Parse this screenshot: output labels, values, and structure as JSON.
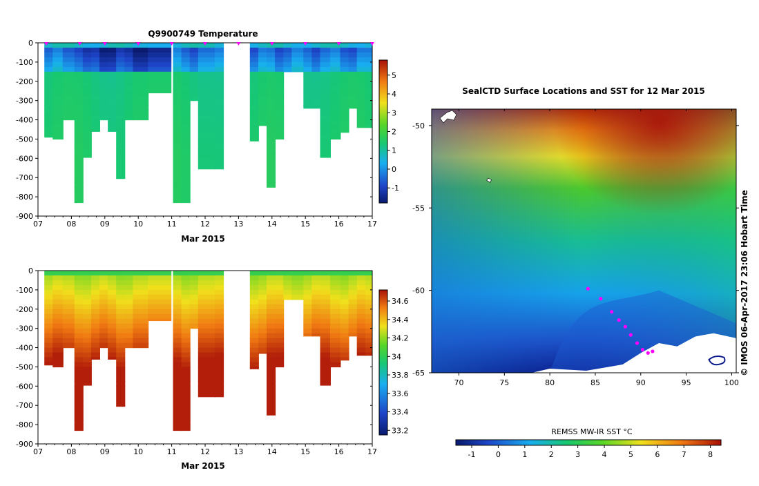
{
  "chart_data": [
    {
      "type": "heatmap",
      "title": "Q9900749  Temperature",
      "xlabel": "Mar 2015",
      "xticks": [
        "07",
        "08",
        "09",
        "10",
        "11",
        "12",
        "13",
        "14",
        "15",
        "16",
        "17"
      ],
      "xlim": [
        7,
        17
      ],
      "ylim": [
        0,
        -900
      ],
      "yticks": [
        "0",
        "-100",
        "-200",
        "-300",
        "-400",
        "-500",
        "-600",
        "-700",
        "-800",
        "-900"
      ],
      "colorbar": {
        "ticks": [
          "-1",
          "0",
          "1",
          "2",
          "3",
          "4",
          "5"
        ],
        "range": [
          -1.8,
          5.8
        ]
      },
      "profile_days": [
        7.2,
        7.45,
        7.75,
        8.1,
        8.35,
        8.6,
        8.85,
        9.1,
        9.35,
        9.6,
        9.85,
        10.3,
        11.05,
        11.3,
        11.55,
        11.8,
        12.3,
        12.55,
        13.35,
        13.6,
        13.85,
        14.1,
        14.35,
        14.6,
        14.95,
        15.2,
        15.45,
        15.75,
        16.05,
        16.3,
        16.55,
        16.8
      ],
      "profile_max_depth": [
        490,
        500,
        400,
        830,
        595,
        460,
        400,
        460,
        705,
        400,
        400,
        260,
        830,
        830,
        300,
        655,
        655,
        0,
        510,
        430,
        750,
        500,
        150,
        150,
        340,
        340,
        595,
        500,
        465,
        340,
        440,
        440
      ],
      "surface_markers": [
        7.25,
        8.25,
        9.0,
        10.0,
        11.0,
        12.0,
        13.0,
        14.0,
        15.0,
        16.0,
        17.0
      ]
    },
    {
      "type": "heatmap",
      "title": "",
      "xlabel": "Mar 2015",
      "xticks": [
        "07",
        "08",
        "09",
        "10",
        "11",
        "12",
        "13",
        "14",
        "15",
        "16",
        "17"
      ],
      "xlim": [
        7,
        17
      ],
      "ylim": [
        0,
        -900
      ],
      "yticks": [
        "0",
        "-100",
        "-200",
        "-300",
        "-400",
        "-500",
        "-600",
        "-700",
        "-800",
        "-900"
      ],
      "colorbar": {
        "ticks": [
          "33.2",
          "33.4",
          "33.6",
          "33.8",
          "34",
          "34.2",
          "34.4",
          "34.6"
        ],
        "range": [
          33.15,
          34.72
        ]
      },
      "profile_days": [
        7.2,
        7.45,
        7.75,
        8.1,
        8.35,
        8.6,
        8.85,
        9.1,
        9.35,
        9.6,
        9.85,
        10.3,
        11.05,
        11.3,
        11.55,
        11.8,
        12.3,
        12.55,
        13.35,
        13.6,
        13.85,
        14.1,
        14.35,
        14.6,
        14.95,
        15.2,
        15.45,
        15.75,
        16.05,
        16.3,
        16.55,
        16.8
      ],
      "profile_max_depth": [
        490,
        500,
        400,
        830,
        595,
        460,
        400,
        460,
        705,
        400,
        400,
        260,
        830,
        830,
        300,
        655,
        655,
        0,
        510,
        430,
        750,
        500,
        150,
        150,
        340,
        340,
        595,
        500,
        465,
        340,
        440,
        440
      ]
    },
    {
      "type": "heatmap",
      "title": "SealCTD Surface Locations and SST for 12 Mar 2015",
      "xticks": [
        "70",
        "75",
        "80",
        "85",
        "90",
        "95",
        "100"
      ],
      "yticks": [
        "-50",
        "-55",
        "-60",
        "-65"
      ],
      "xlim": [
        67,
        100.5
      ],
      "ylim": [
        -65,
        -49
      ],
      "colorbar": {
        "label": "REMSS MW-IR SST °C",
        "ticks": [
          "-1",
          "0",
          "1",
          "2",
          "3",
          "4",
          "5",
          "6",
          "7",
          "8"
        ],
        "range": [
          -1.6,
          8.4
        ]
      },
      "track": [
        [
          84.2,
          -59.9
        ],
        [
          85.6,
          -60.5
        ],
        [
          86.8,
          -61.3
        ],
        [
          87.6,
          -61.8
        ],
        [
          88.3,
          -62.2
        ],
        [
          88.9,
          -62.7
        ],
        [
          89.6,
          -63.2
        ],
        [
          90.2,
          -63.6
        ],
        [
          90.8,
          -63.8
        ],
        [
          91.3,
          -63.7
        ]
      ],
      "side_label": "© IMOS 06-Apr-2017 23:06 Hobart Time"
    }
  ]
}
